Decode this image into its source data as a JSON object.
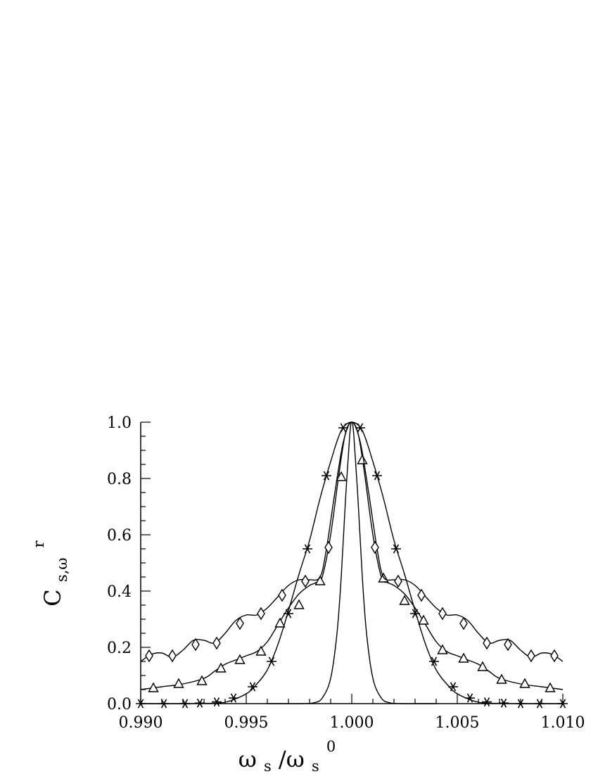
{
  "chart_data": {
    "type": "line",
    "title": "",
    "xlabel": {
      "main": "ω",
      "sub": "s",
      "slash": "/ω",
      "sub2": "s",
      "sup2": "0"
    },
    "ylabel": {
      "main": "C",
      "sub": "s,ω",
      "sup": "r"
    },
    "xlim": [
      0.99,
      1.01
    ],
    "ylim": [
      0.0,
      1.0
    ],
    "x_ticks": [
      0.99,
      0.995,
      1.0,
      1.005,
      1.01
    ],
    "x_tick_labels": [
      "0.990",
      "0.995",
      "1.000",
      "1.005",
      "1.010"
    ],
    "y_ticks": [
      0.0,
      0.2,
      0.4,
      0.6,
      0.8,
      1.0
    ],
    "y_tick_labels": [
      "0.0",
      "0.2",
      "0.4",
      "0.6",
      "0.8",
      "1.0"
    ],
    "grid": false,
    "legend": "none",
    "colors": {
      "line": "#000000",
      "background": "#ffffff"
    },
    "series": [
      {
        "marker": "none",
        "points": [
          [
            0.996,
            0.0
          ],
          [
            0.9968,
            0.0
          ],
          [
            0.9976,
            0.0
          ],
          [
            0.9982,
            0.003
          ],
          [
            0.9986,
            0.02
          ],
          [
            0.999,
            0.09
          ],
          [
            0.9993,
            0.25
          ],
          [
            0.9995,
            0.45
          ],
          [
            0.9997,
            0.72
          ],
          [
            0.9999,
            0.95
          ],
          [
            1.0,
            1.0
          ],
          [
            1.0001,
            0.95
          ],
          [
            1.0003,
            0.72
          ],
          [
            1.0005,
            0.45
          ],
          [
            1.0007,
            0.25
          ],
          [
            1.001,
            0.09
          ],
          [
            1.0014,
            0.02
          ],
          [
            1.0018,
            0.003
          ],
          [
            1.0024,
            0.0
          ],
          [
            1.0032,
            0.0
          ],
          [
            1.004,
            0.0
          ]
        ]
      },
      {
        "marker": "star",
        "points": [
          [
            0.99,
            0.0
          ],
          [
            0.992,
            0.0
          ],
          [
            0.993,
            0.001
          ],
          [
            0.994,
            0.005
          ],
          [
            0.995,
            0.035
          ],
          [
            0.9955,
            0.07
          ],
          [
            0.996,
            0.12
          ],
          [
            0.9965,
            0.21
          ],
          [
            0.997,
            0.33
          ],
          [
            0.9975,
            0.46
          ],
          [
            0.998,
            0.58
          ],
          [
            0.9985,
            0.73
          ],
          [
            0.999,
            0.86
          ],
          [
            0.9995,
            0.97
          ],
          [
            1.0,
            1.0
          ],
          [
            1.0005,
            0.97
          ],
          [
            1.001,
            0.86
          ],
          [
            1.0015,
            0.73
          ],
          [
            1.002,
            0.58
          ],
          [
            1.0025,
            0.46
          ],
          [
            1.003,
            0.33
          ],
          [
            1.0035,
            0.21
          ],
          [
            1.004,
            0.12
          ],
          [
            1.0045,
            0.07
          ],
          [
            1.005,
            0.035
          ],
          [
            1.006,
            0.005
          ],
          [
            1.007,
            0.001
          ],
          [
            1.008,
            0.0
          ],
          [
            1.01,
            0.0
          ]
        ],
        "markers": [
          [
            0.99,
            0.0
          ],
          [
            0.9911,
            0.0
          ],
          [
            0.9921,
            0.0
          ],
          [
            0.9928,
            0.002
          ],
          [
            0.9936,
            0.006
          ],
          [
            0.9944,
            0.02
          ],
          [
            0.9953,
            0.06
          ],
          [
            0.9962,
            0.15
          ],
          [
            0.997,
            0.32
          ],
          [
            0.9979,
            0.55
          ],
          [
            0.9988,
            0.81
          ],
          [
            0.9996,
            0.98
          ],
          [
            1.0004,
            0.98
          ],
          [
            1.0012,
            0.81
          ],
          [
            1.0021,
            0.55
          ],
          [
            1.003,
            0.32
          ],
          [
            1.0039,
            0.15
          ],
          [
            1.0048,
            0.06
          ],
          [
            1.0056,
            0.02
          ],
          [
            1.0064,
            0.006
          ],
          [
            1.0072,
            0.002
          ],
          [
            1.008,
            0.0
          ],
          [
            1.0089,
            0.0
          ],
          [
            1.01,
            0.0
          ]
        ]
      },
      {
        "marker": "triangle",
        "points": [
          [
            0.99,
            0.05
          ],
          [
            0.991,
            0.06
          ],
          [
            0.992,
            0.07
          ],
          [
            0.993,
            0.09
          ],
          [
            0.9935,
            0.115
          ],
          [
            0.994,
            0.14
          ],
          [
            0.9945,
            0.155
          ],
          [
            0.995,
            0.17
          ],
          [
            0.9955,
            0.185
          ],
          [
            0.996,
            0.22
          ],
          [
            0.9965,
            0.28
          ],
          [
            0.997,
            0.34
          ],
          [
            0.9975,
            0.39
          ],
          [
            0.998,
            0.42
          ],
          [
            0.9983,
            0.43
          ],
          [
            0.9986,
            0.45
          ],
          [
            0.999,
            0.6
          ],
          [
            0.9994,
            0.82
          ],
          [
            0.9997,
            0.96
          ],
          [
            1.0,
            1.0
          ],
          [
            1.0003,
            0.96
          ],
          [
            1.0006,
            0.82
          ],
          [
            1.001,
            0.6
          ],
          [
            1.0014,
            0.45
          ],
          [
            1.0017,
            0.43
          ],
          [
            1.002,
            0.42
          ],
          [
            1.0025,
            0.39
          ],
          [
            1.003,
            0.34
          ],
          [
            1.0035,
            0.28
          ],
          [
            1.004,
            0.22
          ],
          [
            1.0045,
            0.185
          ],
          [
            1.005,
            0.17
          ],
          [
            1.0055,
            0.155
          ],
          [
            1.006,
            0.14
          ],
          [
            1.0065,
            0.115
          ],
          [
            1.007,
            0.09
          ],
          [
            1.008,
            0.07
          ],
          [
            1.009,
            0.06
          ],
          [
            1.01,
            0.05
          ]
        ],
        "markers": [
          [
            0.9906,
            0.055
          ],
          [
            0.9918,
            0.07
          ],
          [
            0.9929,
            0.08
          ],
          [
            0.9938,
            0.125
          ],
          [
            0.9947,
            0.155
          ],
          [
            0.9957,
            0.185
          ],
          [
            0.9966,
            0.285
          ],
          [
            0.9975,
            0.35
          ],
          [
            0.9985,
            0.435
          ],
          [
            0.9995,
            0.805
          ],
          [
            1.0005,
            0.865
          ],
          [
            1.0015,
            0.445
          ],
          [
            1.0025,
            0.365
          ],
          [
            1.0034,
            0.295
          ],
          [
            1.0043,
            0.19
          ],
          [
            1.0053,
            0.16
          ],
          [
            1.0062,
            0.13
          ],
          [
            1.0071,
            0.085
          ],
          [
            1.0082,
            0.07
          ],
          [
            1.0094,
            0.055
          ]
        ]
      },
      {
        "marker": "diamond",
        "points": [
          [
            0.99,
            0.15
          ],
          [
            0.9905,
            0.175
          ],
          [
            0.991,
            0.18
          ],
          [
            0.9915,
            0.165
          ],
          [
            0.992,
            0.19
          ],
          [
            0.9925,
            0.225
          ],
          [
            0.993,
            0.225
          ],
          [
            0.9935,
            0.215
          ],
          [
            0.994,
            0.25
          ],
          [
            0.9945,
            0.295
          ],
          [
            0.995,
            0.315
          ],
          [
            0.9955,
            0.315
          ],
          [
            0.996,
            0.34
          ],
          [
            0.9965,
            0.38
          ],
          [
            0.997,
            0.42
          ],
          [
            0.9975,
            0.44
          ],
          [
            0.998,
            0.44
          ],
          [
            0.9985,
            0.45
          ],
          [
            0.9988,
            0.55
          ],
          [
            0.9992,
            0.75
          ],
          [
            0.9996,
            0.93
          ],
          [
            1.0,
            1.0
          ],
          [
            1.0004,
            0.93
          ],
          [
            1.0008,
            0.75
          ],
          [
            1.0012,
            0.55
          ],
          [
            1.0015,
            0.45
          ],
          [
            1.002,
            0.44
          ],
          [
            1.0025,
            0.44
          ],
          [
            1.003,
            0.42
          ],
          [
            1.0035,
            0.38
          ],
          [
            1.004,
            0.34
          ],
          [
            1.0045,
            0.315
          ],
          [
            1.005,
            0.315
          ],
          [
            1.0055,
            0.295
          ],
          [
            1.006,
            0.25
          ],
          [
            1.0065,
            0.215
          ],
          [
            1.007,
            0.225
          ],
          [
            1.0075,
            0.225
          ],
          [
            1.008,
            0.19
          ],
          [
            1.0085,
            0.165
          ],
          [
            1.009,
            0.18
          ],
          [
            1.0095,
            0.175
          ],
          [
            1.01,
            0.15
          ]
        ],
        "markers": [
          [
            0.9904,
            0.17
          ],
          [
            0.9915,
            0.17
          ],
          [
            0.9926,
            0.21
          ],
          [
            0.9936,
            0.215
          ],
          [
            0.9947,
            0.285
          ],
          [
            0.9957,
            0.32
          ],
          [
            0.9967,
            0.385
          ],
          [
            0.9978,
            0.435
          ],
          [
            0.9989,
            0.555
          ],
          [
            1.0011,
            0.555
          ],
          [
            1.0022,
            0.435
          ],
          [
            1.0033,
            0.385
          ],
          [
            1.0043,
            0.32
          ],
          [
            1.0053,
            0.285
          ],
          [
            1.0064,
            0.215
          ],
          [
            1.0074,
            0.21
          ],
          [
            1.0085,
            0.17
          ],
          [
            1.0096,
            0.17
          ]
        ]
      }
    ]
  }
}
